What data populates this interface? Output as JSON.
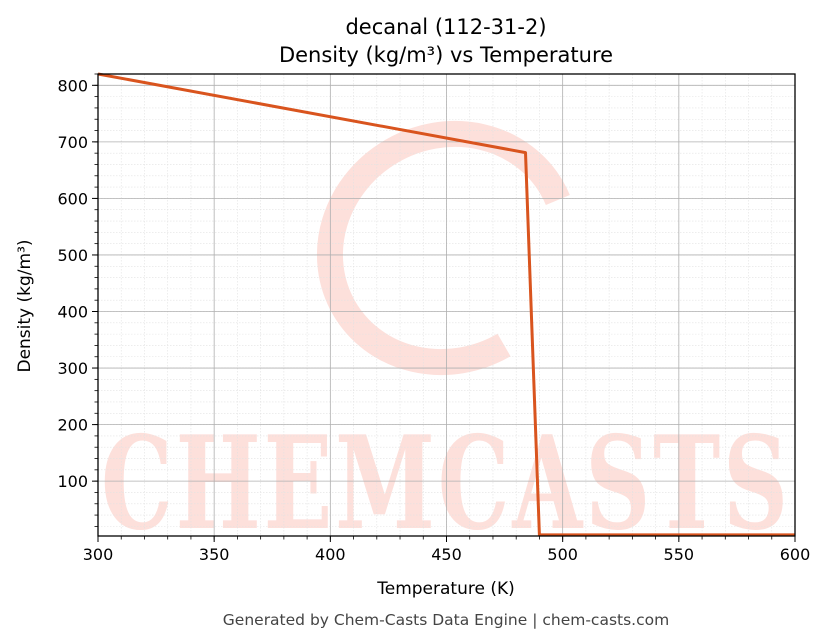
{
  "chart_data": {
    "type": "line",
    "title": "decanal (112-31-2)",
    "subtitle": "Density (kg/m³) vs Temperature",
    "xlabel": "Temperature (K)",
    "ylabel": "Density (kg/m³)",
    "xlim": [
      300,
      600
    ],
    "ylim": [
      3,
      820
    ],
    "xticks": [
      300,
      350,
      400,
      450,
      500,
      550,
      600
    ],
    "yticks": [
      100,
      200,
      300,
      400,
      500,
      600,
      700,
      800
    ],
    "grid": true,
    "series": [
      {
        "color": "#d9541e",
        "x": [
          300,
          484,
          490,
          600
        ],
        "y": [
          820,
          681,
          5,
          5
        ]
      }
    ]
  },
  "watermark": {
    "text": "CHEMCASTS",
    "color": "#fde0db"
  },
  "footer": "Generated by Chem-Casts Data Engine | chem-casts.com"
}
